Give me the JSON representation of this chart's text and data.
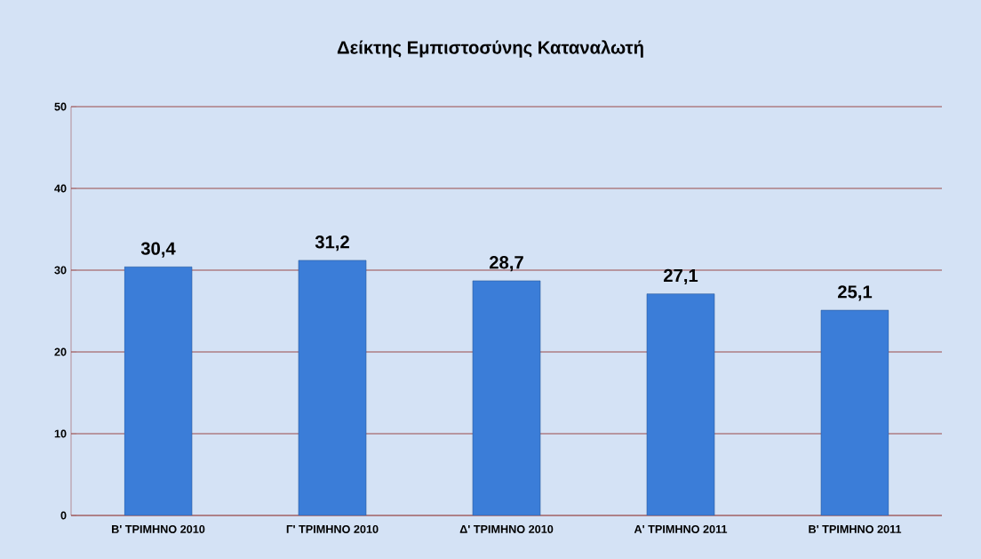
{
  "chart_data": {
    "type": "bar",
    "title": "Δείκτης Εμπιστοσύνης Καταναλωτή",
    "categories": [
      "Β' ΤΡΙΜΗΝΟ 2010",
      "Γ' ΤΡΙΜΗΝΟ 2010",
      "Δ' ΤΡΙΜΗΝΟ 2010",
      "Α' ΤΡΙΜΗΝΟ 2011",
      "Β' ΤΡΙΜΗΝΟ 2011"
    ],
    "values": [
      30.4,
      31.2,
      28.7,
      27.1,
      25.1
    ],
    "value_labels": [
      "30,4",
      "31,2",
      "28,7",
      "27,1",
      "25,1"
    ],
    "color": "#3b7dd8",
    "ylim": [
      0,
      50
    ],
    "yticks": [
      0,
      10,
      20,
      30,
      40,
      50
    ],
    "grid": "y"
  }
}
